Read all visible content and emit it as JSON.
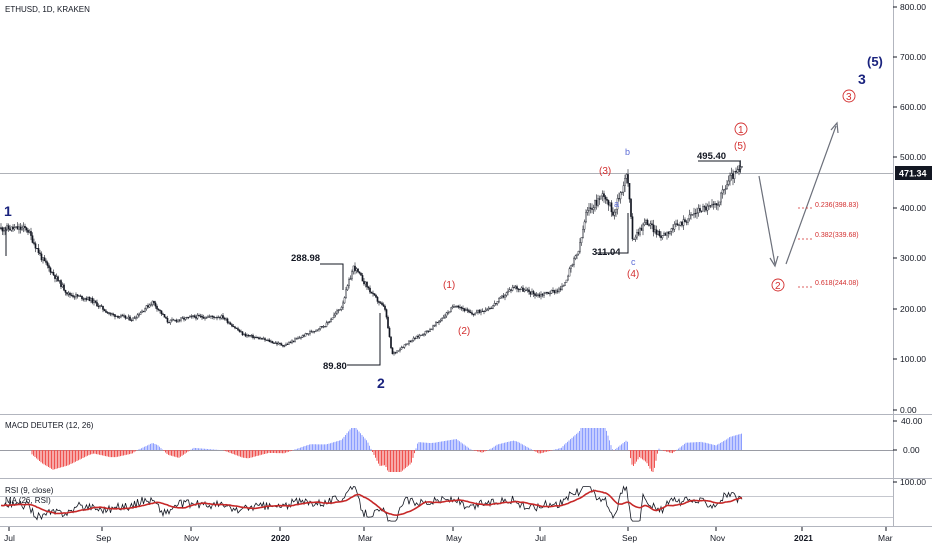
{
  "header": {
    "symbol": "ETHUSD, 1D, KRAKEN"
  },
  "price_axis": {
    "ticks": [
      "800.00",
      "700.00",
      "600.00",
      "500.00",
      "400.00",
      "300.00",
      "200.00",
      "100.00",
      "0.00"
    ],
    "last_price": "471.34",
    "last_price_bg": "#131722"
  },
  "macd_panel": {
    "label": "MACD DEUTER (12, 26)",
    "ticks": [
      "40.00",
      "0.00"
    ]
  },
  "rsi_panel": {
    "label": "RSI (9, close)",
    "ma_label": "MA (26, RSI)",
    "ticks": [
      "100.00"
    ]
  },
  "time_axis": {
    "labels": [
      "Jul",
      "Sep",
      "Nov",
      "2020",
      "Mar",
      "May",
      "Jul",
      "Sep",
      "Nov",
      "2021",
      "Mar"
    ]
  },
  "annotations": {
    "levels": [
      "288.98",
      "89.80",
      "311.04",
      "495.40"
    ],
    "waves_navy": [
      "1",
      "2",
      "3",
      "(5)"
    ],
    "waves_red": [
      "(1)",
      "(2)",
      "(3)",
      "(4)",
      "(5)"
    ],
    "waves_blue": [
      "a",
      "b",
      "c"
    ],
    "circled": [
      "1",
      "2",
      "3"
    ],
    "fib": [
      "0.236(398.83)",
      "0.382(339.68)",
      "0.618(244.08)"
    ]
  },
  "colors": {
    "candle": "#131722",
    "wave_red": "#d32f2f",
    "wave_navy": "#1a237e",
    "macd_pos": "#8c9eff",
    "macd_neg": "#ef5350",
    "rsi_ma": "#c62828"
  },
  "chart_data": {
    "type": "candlestick",
    "y_axis": {
      "min": 0,
      "max": 800,
      "unit": "USD"
    },
    "price_path": [
      {
        "x": "2019-06-20",
        "y": 360
      },
      {
        "x": "2019-07-01",
        "y": 300
      },
      {
        "x": "2019-07-20",
        "y": 230
      },
      {
        "x": "2019-08-05",
        "y": 220
      },
      {
        "x": "2019-08-20",
        "y": 190
      },
      {
        "x": "2019-09-05",
        "y": 180
      },
      {
        "x": "2019-09-20",
        "y": 215
      },
      {
        "x": "2019-10-01",
        "y": 175
      },
      {
        "x": "2019-10-20",
        "y": 185
      },
      {
        "x": "2019-11-10",
        "y": 185
      },
      {
        "x": "2019-11-25",
        "y": 150
      },
      {
        "x": "2019-12-10",
        "y": 140
      },
      {
        "x": "2019-12-25",
        "y": 128
      },
      {
        "x": "2020-01-10",
        "y": 150
      },
      {
        "x": "2020-01-25",
        "y": 170
      },
      {
        "x": "2020-02-05",
        "y": 205
      },
      {
        "x": "2020-02-14",
        "y": 285
      },
      {
        "x": "2020-02-28",
        "y": 228
      },
      {
        "x": "2020-03-08",
        "y": 200
      },
      {
        "x": "2020-03-13",
        "y": 110
      },
      {
        "x": "2020-03-25",
        "y": 135
      },
      {
        "x": "2020-04-10",
        "y": 160
      },
      {
        "x": "2020-04-29",
        "y": 210
      },
      {
        "x": "2020-05-10",
        "y": 190
      },
      {
        "x": "2020-05-25",
        "y": 205
      },
      {
        "x": "2020-06-10",
        "y": 245
      },
      {
        "x": "2020-06-28",
        "y": 228
      },
      {
        "x": "2020-07-15",
        "y": 240
      },
      {
        "x": "2020-07-28",
        "y": 320
      },
      {
        "x": "2020-08-02",
        "y": 390
      },
      {
        "x": "2020-08-15",
        "y": 430
      },
      {
        "x": "2020-08-22",
        "y": 390
      },
      {
        "x": "2020-09-01",
        "y": 470
      },
      {
        "x": "2020-09-05",
        "y": 340
      },
      {
        "x": "2020-09-15",
        "y": 375
      },
      {
        "x": "2020-09-25",
        "y": 345
      },
      {
        "x": "2020-10-10",
        "y": 370
      },
      {
        "x": "2020-10-25",
        "y": 400
      },
      {
        "x": "2020-11-05",
        "y": 405
      },
      {
        "x": "2020-11-15",
        "y": 460
      },
      {
        "x": "2020-11-24",
        "y": 480
      }
    ],
    "key_levels": [
      288.98,
      89.8,
      311.04,
      495.4
    ],
    "last_price": 471.34,
    "fib_targets": [
      398.83,
      339.68,
      244.08
    ]
  }
}
